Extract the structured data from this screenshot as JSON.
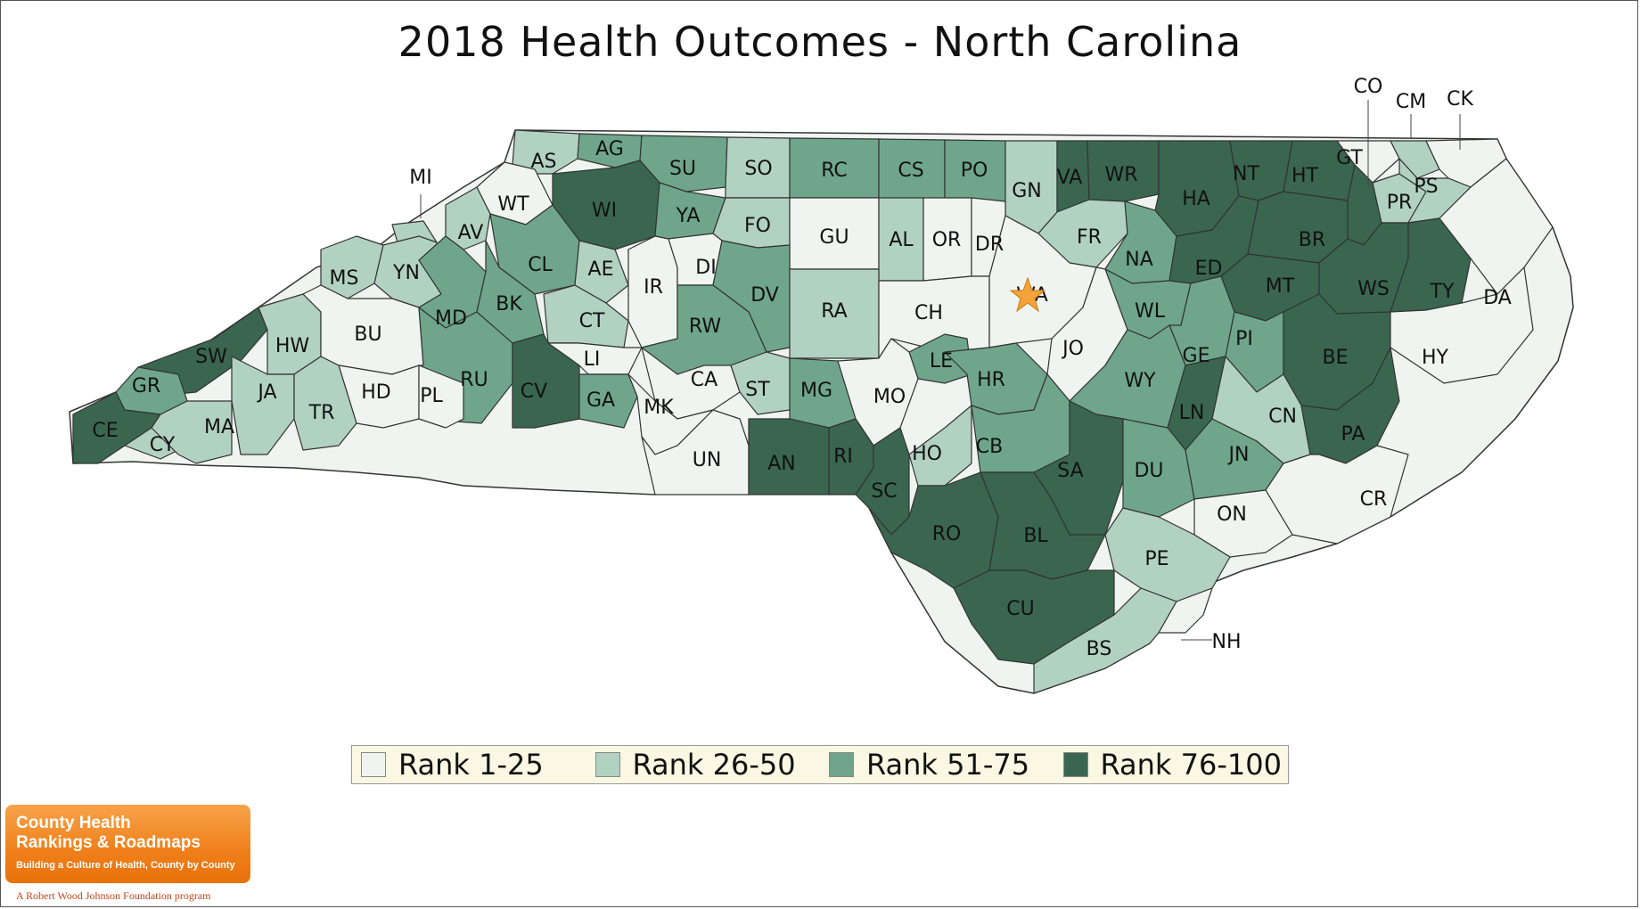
{
  "title": "2018 Health Outcomes - North Carolina",
  "colors": {
    "rank_1_25": "#f0f4f1",
    "rank_26_50": "#b2d2c1",
    "rank_51_75": "#6fa68b",
    "rank_76_100": "#3a6650",
    "outline": "#333333",
    "star": "#f2a33a"
  },
  "legend": [
    {
      "label": "Rank 1-25",
      "color": "#f0f4f1"
    },
    {
      "label": "Rank 26-50",
      "color": "#b2d2c1"
    },
    {
      "label": "Rank 51-75",
      "color": "#6fa68b"
    },
    {
      "label": "Rank 76-100",
      "color": "#3a6650"
    }
  ],
  "counties": [
    {
      "abbr": "AS",
      "tier": 2
    },
    {
      "abbr": "AG",
      "tier": 3
    },
    {
      "abbr": "SU",
      "tier": 3
    },
    {
      "abbr": "SO",
      "tier": 2
    },
    {
      "abbr": "RC",
      "tier": 3
    },
    {
      "abbr": "CS",
      "tier": 3
    },
    {
      "abbr": "PO",
      "tier": 3
    },
    {
      "abbr": "GN",
      "tier": 2
    },
    {
      "abbr": "VA",
      "tier": 4
    },
    {
      "abbr": "WR",
      "tier": 4
    },
    {
      "abbr": "HA",
      "tier": 4
    },
    {
      "abbr": "NT",
      "tier": 4
    },
    {
      "abbr": "HT",
      "tier": 4
    },
    {
      "abbr": "GT",
      "tier": 1
    },
    {
      "abbr": "CO",
      "tier": 4
    },
    {
      "abbr": "CM",
      "tier": 2
    },
    {
      "abbr": "CK",
      "tier": 1
    },
    {
      "abbr": "PR",
      "tier": 2
    },
    {
      "abbr": "PS",
      "tier": 2
    },
    {
      "abbr": "MI",
      "tier": 2
    },
    {
      "abbr": "WT",
      "tier": 1
    },
    {
      "abbr": "WI",
      "tier": 4
    },
    {
      "abbr": "YA",
      "tier": 3
    },
    {
      "abbr": "FO",
      "tier": 2
    },
    {
      "abbr": "GU",
      "tier": 1
    },
    {
      "abbr": "AL",
      "tier": 2
    },
    {
      "abbr": "OR",
      "tier": 1
    },
    {
      "abbr": "DR",
      "tier": 1
    },
    {
      "abbr": "FR",
      "tier": 2
    },
    {
      "abbr": "NA",
      "tier": 3
    },
    {
      "abbr": "ED",
      "tier": 4
    },
    {
      "abbr": "BR",
      "tier": 4
    },
    {
      "abbr": "MT",
      "tier": 4
    },
    {
      "abbr": "WS",
      "tier": 4
    },
    {
      "abbr": "TY",
      "tier": 4
    },
    {
      "abbr": "DA",
      "tier": 1
    },
    {
      "abbr": "AV",
      "tier": 2
    },
    {
      "abbr": "CL",
      "tier": 3
    },
    {
      "abbr": "AE",
      "tier": 2
    },
    {
      "abbr": "IR",
      "tier": 1
    },
    {
      "abbr": "DI",
      "tier": 1
    },
    {
      "abbr": "DV",
      "tier": 3
    },
    {
      "abbr": "RA",
      "tier": 2
    },
    {
      "abbr": "CH",
      "tier": 1
    },
    {
      "abbr": "WA",
      "tier": 1
    },
    {
      "abbr": "JO",
      "tier": 1
    },
    {
      "abbr": "WL",
      "tier": 3
    },
    {
      "abbr": "GE",
      "tier": 3
    },
    {
      "abbr": "PI",
      "tier": 3
    },
    {
      "abbr": "BE",
      "tier": 4
    },
    {
      "abbr": "HY",
      "tier": 1
    },
    {
      "abbr": "MS",
      "tier": 2
    },
    {
      "abbr": "YN",
      "tier": 2
    },
    {
      "abbr": "MD",
      "tier": 3
    },
    {
      "abbr": "BK",
      "tier": 3
    },
    {
      "abbr": "CT",
      "tier": 2
    },
    {
      "abbr": "RW",
      "tier": 3
    },
    {
      "abbr": "LE",
      "tier": 3
    },
    {
      "abbr": "HR",
      "tier": 3
    },
    {
      "abbr": "WY",
      "tier": 3
    },
    {
      "abbr": "LN",
      "tier": 4
    },
    {
      "abbr": "CN",
      "tier": 2
    },
    {
      "abbr": "PA",
      "tier": 4
    },
    {
      "abbr": "SW",
      "tier": 4
    },
    {
      "abbr": "HW",
      "tier": 2
    },
    {
      "abbr": "BU",
      "tier": 1
    },
    {
      "abbr": "RU",
      "tier": 3
    },
    {
      "abbr": "CV",
      "tier": 4
    },
    {
      "abbr": "LI",
      "tier": 1
    },
    {
      "abbr": "GA",
      "tier": 3
    },
    {
      "abbr": "CA",
      "tier": 1
    },
    {
      "abbr": "ST",
      "tier": 2
    },
    {
      "abbr": "MG",
      "tier": 3
    },
    {
      "abbr": "MO",
      "tier": 1
    },
    {
      "abbr": "GR",
      "tier": 3
    },
    {
      "abbr": "JA",
      "tier": 2
    },
    {
      "abbr": "HD",
      "tier": 1
    },
    {
      "abbr": "PL",
      "tier": 1
    },
    {
      "abbr": "TR",
      "tier": 2
    },
    {
      "abbr": "MK",
      "tier": 1
    },
    {
      "abbr": "UN",
      "tier": 1
    },
    {
      "abbr": "AN",
      "tier": 4
    },
    {
      "abbr": "RI",
      "tier": 4
    },
    {
      "abbr": "SC",
      "tier": 4
    },
    {
      "abbr": "HO",
      "tier": 2
    },
    {
      "abbr": "CB",
      "tier": 3
    },
    {
      "abbr": "SA",
      "tier": 4
    },
    {
      "abbr": "DU",
      "tier": 3
    },
    {
      "abbr": "JN",
      "tier": 3
    },
    {
      "abbr": "CR",
      "tier": 1
    },
    {
      "abbr": "CE",
      "tier": 4
    },
    {
      "abbr": "CY",
      "tier": 2
    },
    {
      "abbr": "MA",
      "tier": 2
    },
    {
      "abbr": "ON",
      "tier": 1
    },
    {
      "abbr": "RO",
      "tier": 4
    },
    {
      "abbr": "BL",
      "tier": 4
    },
    {
      "abbr": "PE",
      "tier": 2
    },
    {
      "abbr": "CU",
      "tier": 4
    },
    {
      "abbr": "BS",
      "tier": 2
    },
    {
      "abbr": "NH",
      "tier": 1
    }
  ],
  "capital_marker": "star",
  "branding": {
    "line1": "County Health",
    "line2": "Rankings & Roadmaps",
    "tagline": "Building a Culture of Health, County by County",
    "footer": "A Robert Wood Johnson Foundation program"
  }
}
